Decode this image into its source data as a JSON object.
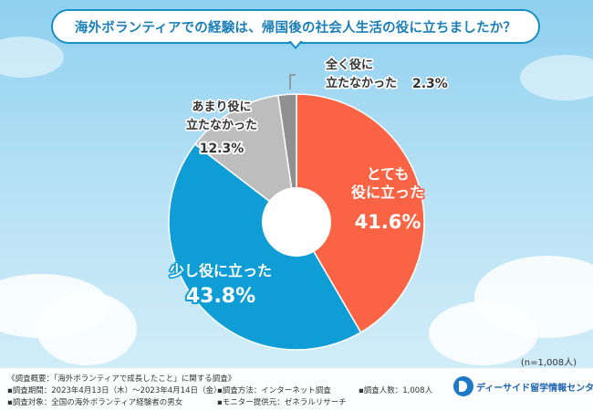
{
  "title": "海外ボランティアでの経験は、帰国後の社会人生活の役に立ちましたか？",
  "chart_data": {
    "type": "pie",
    "donut": true,
    "sample_note": "(n=1,008人)",
    "slices": [
      {
        "label": "とても役に立った",
        "value": 41.6,
        "value_text": "41.6%",
        "color": "#fa6445"
      },
      {
        "label": "少し役に立った",
        "value": 43.8,
        "value_text": "43.8%",
        "color": "#0f9dd6"
      },
      {
        "label": "あまり役に立たなかった",
        "value": 12.3,
        "value_text": "12.3%",
        "color": "#bdbdbd"
      },
      {
        "label": "全く役に立たなかった",
        "value": 2.3,
        "value_text": "2.3%",
        "color": "#909090"
      }
    ]
  },
  "footer": {
    "overview": "《調査概要：「海外ボランティアで成長したこと」に関する調査》",
    "period": "▪調査期間：2023年4月13日（木）～2023年4月14日（金）",
    "method": "▪調査方法：インターネット調査",
    "count": "▪調査人数：1,008人",
    "target": "▪調査対象：全国の海外ボランティア経験者の男女",
    "provider": "▪モニター提供元：ゼネラルリサーチ"
  },
  "logo": {
    "text": "ディーサイド留学情報センター"
  }
}
